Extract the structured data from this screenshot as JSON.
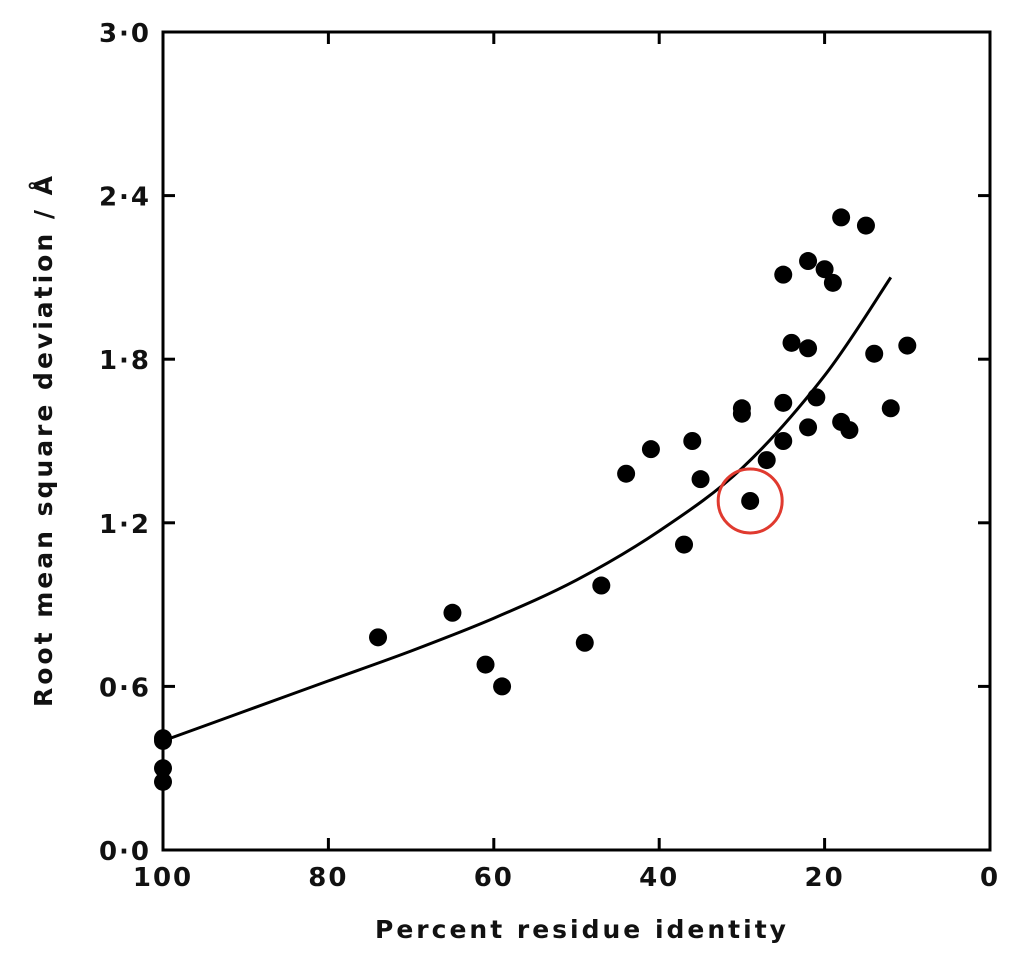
{
  "chart_data": {
    "type": "scatter",
    "xlabel": "Percent residue identity",
    "ylabel": "Root mean square deviation / Å",
    "xlim": [
      100,
      0
    ],
    "ylim": [
      0.0,
      3.0
    ],
    "x_ticks": [
      100,
      80,
      60,
      40,
      20,
      0
    ],
    "x_tick_labels": [
      "100",
      "80",
      "60",
      "40",
      "20",
      "0"
    ],
    "y_ticks": [
      0.0,
      0.6,
      1.2,
      1.8,
      2.4,
      3.0
    ],
    "y_tick_labels": [
      "0·0",
      "0·6",
      "1·2",
      "1·8",
      "2·4",
      "3·0"
    ],
    "grid": false,
    "points": [
      {
        "x": 100,
        "y": 0.41
      },
      {
        "x": 100,
        "y": 0.4
      },
      {
        "x": 100,
        "y": 0.3
      },
      {
        "x": 100,
        "y": 0.25
      },
      {
        "x": 74,
        "y": 0.78
      },
      {
        "x": 65,
        "y": 0.87
      },
      {
        "x": 61,
        "y": 0.68
      },
      {
        "x": 59,
        "y": 0.6
      },
      {
        "x": 49,
        "y": 0.76
      },
      {
        "x": 47,
        "y": 0.97
      },
      {
        "x": 44,
        "y": 1.38
      },
      {
        "x": 41,
        "y": 1.47
      },
      {
        "x": 37,
        "y": 1.12
      },
      {
        "x": 36,
        "y": 1.5
      },
      {
        "x": 35,
        "y": 1.36
      },
      {
        "x": 30,
        "y": 1.62
      },
      {
        "x": 30,
        "y": 1.6
      },
      {
        "x": 29,
        "y": 1.28
      },
      {
        "x": 27,
        "y": 1.43
      },
      {
        "x": 25,
        "y": 2.11
      },
      {
        "x": 25,
        "y": 1.64
      },
      {
        "x": 25,
        "y": 1.5
      },
      {
        "x": 24,
        "y": 1.86
      },
      {
        "x": 22,
        "y": 2.16
      },
      {
        "x": 22,
        "y": 1.84
      },
      {
        "x": 22,
        "y": 1.55
      },
      {
        "x": 21,
        "y": 1.66
      },
      {
        "x": 20,
        "y": 2.13
      },
      {
        "x": 19,
        "y": 2.08
      },
      {
        "x": 18,
        "y": 2.32
      },
      {
        "x": 18,
        "y": 1.57
      },
      {
        "x": 17,
        "y": 1.54
      },
      {
        "x": 15,
        "y": 2.29
      },
      {
        "x": 14,
        "y": 1.82
      },
      {
        "x": 12,
        "y": 1.62
      },
      {
        "x": 10,
        "y": 1.85
      }
    ],
    "fit_curve": {
      "x": [
        100,
        90,
        80,
        70,
        60,
        50,
        40,
        30,
        20,
        12
      ],
      "y": [
        0.4,
        0.51,
        0.62,
        0.73,
        0.85,
        0.99,
        1.17,
        1.4,
        1.74,
        2.1
      ]
    },
    "highlight": {
      "x": 29,
      "y": 1.28,
      "color": "#e03a2f"
    },
    "colors": {
      "marks": "#000000",
      "highlight": "#e03a2f"
    }
  }
}
